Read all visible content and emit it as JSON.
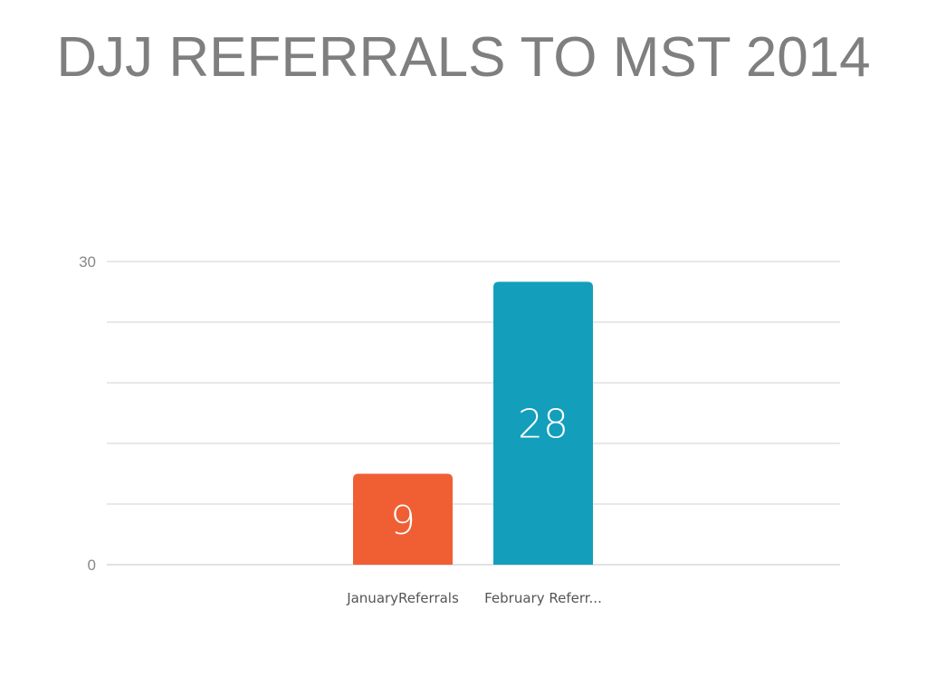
{
  "title": "DJJ REFERRALS TO MST 2014",
  "chart_data": {
    "type": "bar",
    "categories": [
      "JanuaryReferrals",
      "February Referr..."
    ],
    "values": [
      9,
      28
    ],
    "colors": [
      "#f05f34",
      "#139fbb"
    ],
    "ylim": [
      0,
      30
    ],
    "yticks_labeled": [
      0,
      30
    ],
    "gridlines": [
      0,
      6,
      12,
      18,
      24,
      30
    ],
    "grid": true,
    "legend": "none",
    "data_labels": [
      "9",
      "28"
    ]
  }
}
